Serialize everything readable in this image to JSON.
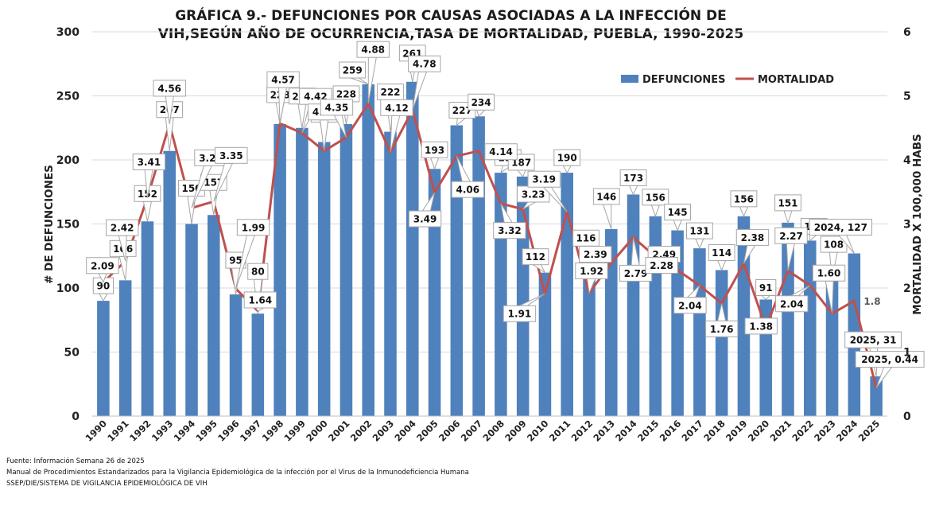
{
  "chart_data": {
    "type": "bar",
    "title_line1": "GRÁFICA 9.- DEFUNCIONES POR CAUSAS ASOCIADAS A LA INFECCIÓN DE",
    "title_line2": "VIH,SEGÚN AÑO DE OCURRENCIA,TASA DE MORTALIDAD, PUEBLA, 1990-2025",
    "ylabel": "# DE DEFUNCIONES",
    "y2label": "MORTALIDAD X 100,000 HABS",
    "ylim": [
      0,
      300
    ],
    "y2lim": [
      0,
      6
    ],
    "yticks": [
      "0",
      "50",
      "100",
      "150",
      "200",
      "250",
      "300"
    ],
    "y2ticks": [
      "0",
      "1",
      "2",
      "3",
      "4",
      "5",
      "6"
    ],
    "legend_position": "top-right",
    "categories": [
      "1990",
      "1991",
      "1992",
      "1993",
      "1994",
      "1995",
      "1996",
      "1997",
      "1998",
      "1999",
      "2000",
      "2001",
      "2002",
      "2003",
      "2004",
      "2005",
      "2006",
      "2007",
      "2008",
      "2009",
      "2010",
      "2011",
      "2012",
      "2013",
      "2014",
      "2015",
      "2016",
      "2017",
      "2018",
      "2019",
      "2020",
      "2021",
      "2022",
      "2023",
      "2024",
      "2025"
    ],
    "series": [
      {
        "name": "DEFUNCIONES",
        "type": "bar",
        "color": "#4f81bd",
        "values": [
          90,
          106,
          152,
          207,
          150,
          157,
          95,
          80,
          228,
          225,
          214,
          228,
          259,
          222,
          261,
          193,
          227,
          234,
          190,
          187,
          112,
          190,
          116,
          146,
          173,
          156,
          145,
          131,
          114,
          156,
          91,
          151,
          137,
          108,
          127,
          31
        ],
        "labels": [
          "90",
          "106",
          "152",
          "207",
          "150",
          "157",
          "95",
          "80",
          "228",
          "225",
          "214",
          "228",
          "259",
          "222",
          "261",
          "193",
          "227",
          "234",
          "190",
          "187",
          "112",
          "190",
          "116",
          "146",
          "173",
          "156",
          "145",
          "131",
          "114",
          "156",
          "91",
          "151",
          "137",
          "108",
          "2024, 127",
          "2025, 31"
        ]
      },
      {
        "name": "MORTALIDAD",
        "type": "line",
        "color": "#c0504d",
        "values": [
          2.09,
          2.42,
          3.41,
          4.56,
          3.25,
          3.35,
          1.99,
          1.64,
          4.57,
          4.42,
          4.14,
          4.35,
          4.88,
          4.12,
          4.78,
          3.49,
          4.06,
          4.14,
          3.32,
          3.23,
          1.91,
          3.19,
          1.92,
          2.39,
          2.79,
          2.49,
          2.28,
          2.04,
          1.76,
          2.38,
          1.38,
          2.27,
          2.04,
          1.6,
          1.8,
          0.44
        ],
        "labels": [
          "2.09",
          "2.42",
          "3.41",
          "4.56",
          "3.25",
          "3.35",
          "1.99",
          "1.64",
          "4.57",
          "4.42",
          "4.14",
          "4.35",
          "4.88",
          "4.12",
          "4.78",
          "3.49",
          "4.06",
          "4.14",
          "3.32",
          "3.23",
          "1.91",
          "3.19",
          "1.92",
          "2.39",
          "2.79",
          "2.49",
          "2.28",
          "2.04",
          "1.76",
          "2.38",
          "1.38",
          "2.27",
          "2.04",
          "1.60",
          "1.8",
          "2025, 0.44"
        ]
      }
    ]
  },
  "source": {
    "line1": "Fuente: Información Semana 26 de 2025",
    "line2": "Manual de Procedimientos Estandarizados para la Vigilancia Epidemiológica de la infección por el Virus de la Inmunodeficiencia Humana",
    "line3": "SSEP/DIE/SISTEMA DE VIGILANCIA EPIDEMIOLÓGICA DE VIH"
  }
}
